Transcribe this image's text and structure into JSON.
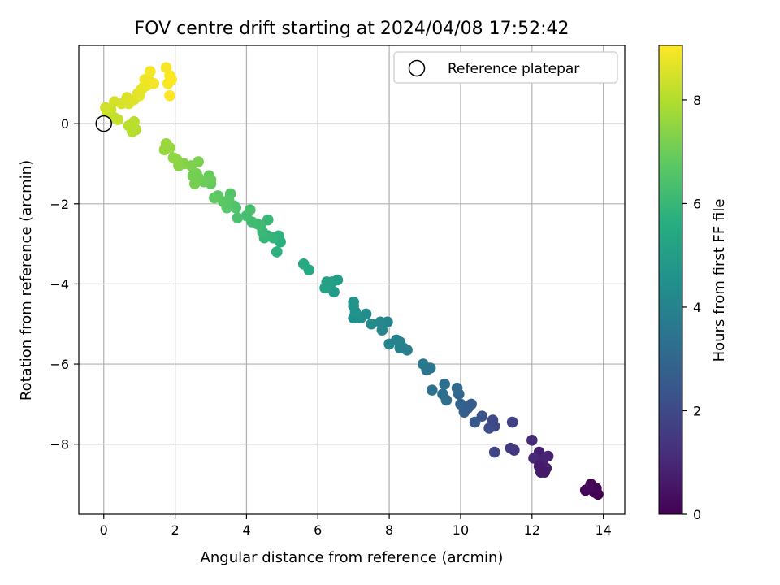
{
  "chart_data": {
    "type": "scatter",
    "title": "FOV centre drift starting at 2024/04/08 17:52:42",
    "xlabel": "Angular distance from reference (arcmin)",
    "ylabel": "Rotation from reference (arcmin)",
    "xlim": [
      -0.7,
      14.6
    ],
    "ylim": [
      -9.75,
      1.95
    ],
    "xticks": [
      0,
      2,
      4,
      6,
      8,
      10,
      12,
      14
    ],
    "yticks": [
      -8,
      -6,
      -4,
      -2,
      0
    ],
    "grid": true,
    "legend": {
      "placement": "top-right",
      "entries": [
        "Reference platepar"
      ]
    },
    "reference_point": {
      "x": 0,
      "y": 0
    },
    "colorbar": {
      "label": "Hours from first FF file",
      "range": [
        0,
        9.05
      ],
      "ticks": [
        0,
        2,
        4,
        6,
        8
      ],
      "colormap": "viridis"
    },
    "points": [
      [
        13.5,
        -9.15,
        0.1
      ],
      [
        13.65,
        -9.0,
        0.1
      ],
      [
        13.75,
        -9.2,
        0.05
      ],
      [
        13.85,
        -9.25,
        0.0
      ],
      [
        13.8,
        -9.1,
        0.1
      ],
      [
        13.6,
        -9.1,
        0.2
      ],
      [
        12.2,
        -8.2,
        0.8
      ],
      [
        12.3,
        -8.4,
        0.85
      ],
      [
        12.25,
        -8.7,
        0.7
      ],
      [
        12.4,
        -8.6,
        0.75
      ],
      [
        12.45,
        -8.3,
        0.9
      ],
      [
        12.05,
        -8.35,
        1.0
      ],
      [
        12.2,
        -8.55,
        0.65
      ],
      [
        12.35,
        -8.7,
        0.6
      ],
      [
        12.0,
        -7.9,
        1.1
      ],
      [
        11.5,
        -8.15,
        1.4
      ],
      [
        11.4,
        -8.1,
        1.5
      ],
      [
        11.45,
        -7.45,
        1.7
      ],
      [
        10.95,
        -8.2,
        1.9
      ],
      [
        10.9,
        -7.4,
        2.0
      ],
      [
        10.95,
        -7.55,
        1.95
      ],
      [
        10.8,
        -7.6,
        2.1
      ],
      [
        10.6,
        -7.3,
        2.3
      ],
      [
        10.4,
        -7.45,
        2.5
      ],
      [
        10.3,
        -7.0,
        2.6
      ],
      [
        10.1,
        -7.2,
        2.8
      ],
      [
        10.0,
        -7.0,
        2.9
      ],
      [
        10.2,
        -7.1,
        2.7
      ],
      [
        9.95,
        -6.75,
        3.0
      ],
      [
        9.9,
        -6.6,
        3.1
      ],
      [
        9.6,
        -6.9,
        3.2
      ],
      [
        9.5,
        -6.75,
        3.25
      ],
      [
        9.55,
        -6.5,
        3.3
      ],
      [
        9.2,
        -6.65,
        3.4
      ],
      [
        9.15,
        -6.1,
        3.5
      ],
      [
        9.05,
        -6.15,
        3.55
      ],
      [
        8.95,
        -6.0,
        3.6
      ],
      [
        8.5,
        -5.65,
        3.8
      ],
      [
        8.4,
        -5.6,
        3.85
      ],
      [
        8.3,
        -5.6,
        3.9
      ],
      [
        8.3,
        -5.45,
        3.95
      ],
      [
        8.2,
        -5.4,
        4.0
      ],
      [
        8.0,
        -5.5,
        4.05
      ],
      [
        7.95,
        -4.95,
        4.1
      ],
      [
        7.75,
        -4.95,
        4.2
      ],
      [
        7.8,
        -5.15,
        4.15
      ],
      [
        7.5,
        -5.0,
        4.3
      ],
      [
        7.35,
        -4.75,
        4.35
      ],
      [
        7.2,
        -4.85,
        4.4
      ],
      [
        7.1,
        -4.8,
        4.45
      ],
      [
        7.0,
        -4.85,
        4.5
      ],
      [
        7.05,
        -4.7,
        4.55
      ],
      [
        7.0,
        -4.55,
        4.6
      ],
      [
        7.0,
        -4.45,
        4.65
      ],
      [
        6.45,
        -4.2,
        4.9
      ],
      [
        6.55,
        -3.9,
        5.0
      ],
      [
        6.4,
        -3.95,
        5.05
      ],
      [
        6.25,
        -3.95,
        5.1
      ],
      [
        6.2,
        -4.1,
        5.15
      ],
      [
        5.75,
        -3.65,
        5.4
      ],
      [
        5.6,
        -3.5,
        5.5
      ],
      [
        4.95,
        -2.95,
        5.7
      ],
      [
        4.85,
        -3.2,
        5.75
      ],
      [
        4.9,
        -2.8,
        5.8
      ],
      [
        4.75,
        -2.85,
        5.85
      ],
      [
        4.6,
        -2.8,
        5.9
      ],
      [
        4.5,
        -2.85,
        5.95
      ],
      [
        4.6,
        -2.4,
        6.0
      ],
      [
        4.45,
        -2.7,
        6.05
      ],
      [
        4.4,
        -2.55,
        6.1
      ],
      [
        4.3,
        -2.5,
        6.15
      ],
      [
        4.15,
        -2.45,
        6.2
      ],
      [
        4.0,
        -2.3,
        6.3
      ],
      [
        4.1,
        -2.15,
        6.35
      ],
      [
        3.75,
        -2.35,
        6.4
      ],
      [
        3.7,
        -2.1,
        6.45
      ],
      [
        3.65,
        -2.05,
        6.5
      ],
      [
        3.55,
        -1.75,
        6.55
      ],
      [
        3.5,
        -1.9,
        6.6
      ],
      [
        3.45,
        -2.1,
        6.65
      ],
      [
        3.35,
        -1.95,
        6.7
      ],
      [
        3.2,
        -1.8,
        6.75
      ],
      [
        3.1,
        -1.85,
        6.8
      ],
      [
        3.0,
        -1.5,
        6.85
      ],
      [
        2.95,
        -1.3,
        6.9
      ],
      [
        3.0,
        -1.4,
        6.95
      ],
      [
        2.8,
        -1.45,
        7.0
      ],
      [
        2.65,
        -1.35,
        7.05
      ],
      [
        2.6,
        -1.25,
        7.1
      ],
      [
        2.5,
        -1.3,
        7.1
      ],
      [
        2.55,
        -1.5,
        7.15
      ],
      [
        2.65,
        -0.95,
        7.2
      ],
      [
        2.45,
        -1.05,
        7.25
      ],
      [
        2.25,
        -1.0,
        7.35
      ],
      [
        2.1,
        -1.05,
        7.4
      ],
      [
        2.05,
        -0.9,
        7.45
      ],
      [
        1.95,
        -0.85,
        7.5
      ],
      [
        1.85,
        -0.6,
        7.55
      ],
      [
        1.7,
        -0.65,
        7.6
      ],
      [
        1.75,
        -0.5,
        7.65
      ],
      [
        0.9,
        -0.15,
        8.0
      ],
      [
        0.8,
        -0.2,
        8.05
      ],
      [
        0.7,
        -0.05,
        8.1
      ],
      [
        0.85,
        0.05,
        8.1
      ],
      [
        0.3,
        0.15,
        8.2
      ],
      [
        0.4,
        0.1,
        8.25
      ],
      [
        0.2,
        0.35,
        8.3
      ],
      [
        0.1,
        0.3,
        8.35
      ],
      [
        0.05,
        0.4,
        8.4
      ],
      [
        0.3,
        0.55,
        8.45
      ],
      [
        0.5,
        0.5,
        8.5
      ],
      [
        0.65,
        0.65,
        8.55
      ],
      [
        0.7,
        0.5,
        8.55
      ],
      [
        0.85,
        0.6,
        8.6
      ],
      [
        0.95,
        0.75,
        8.65
      ],
      [
        1.0,
        0.7,
        8.7
      ],
      [
        1.05,
        0.85,
        8.7
      ],
      [
        1.1,
        0.9,
        8.75
      ],
      [
        1.2,
        0.95,
        8.8
      ],
      [
        1.15,
        1.1,
        8.85
      ],
      [
        1.3,
        1.05,
        8.85
      ],
      [
        1.3,
        1.3,
        8.9
      ],
      [
        1.4,
        1.0,
        8.9
      ],
      [
        1.75,
        1.4,
        8.95
      ],
      [
        1.85,
        1.2,
        9.0
      ],
      [
        1.8,
        1.0,
        9.0
      ],
      [
        1.85,
        0.7,
        9.05
      ],
      [
        1.9,
        1.1,
        9.05
      ]
    ]
  }
}
